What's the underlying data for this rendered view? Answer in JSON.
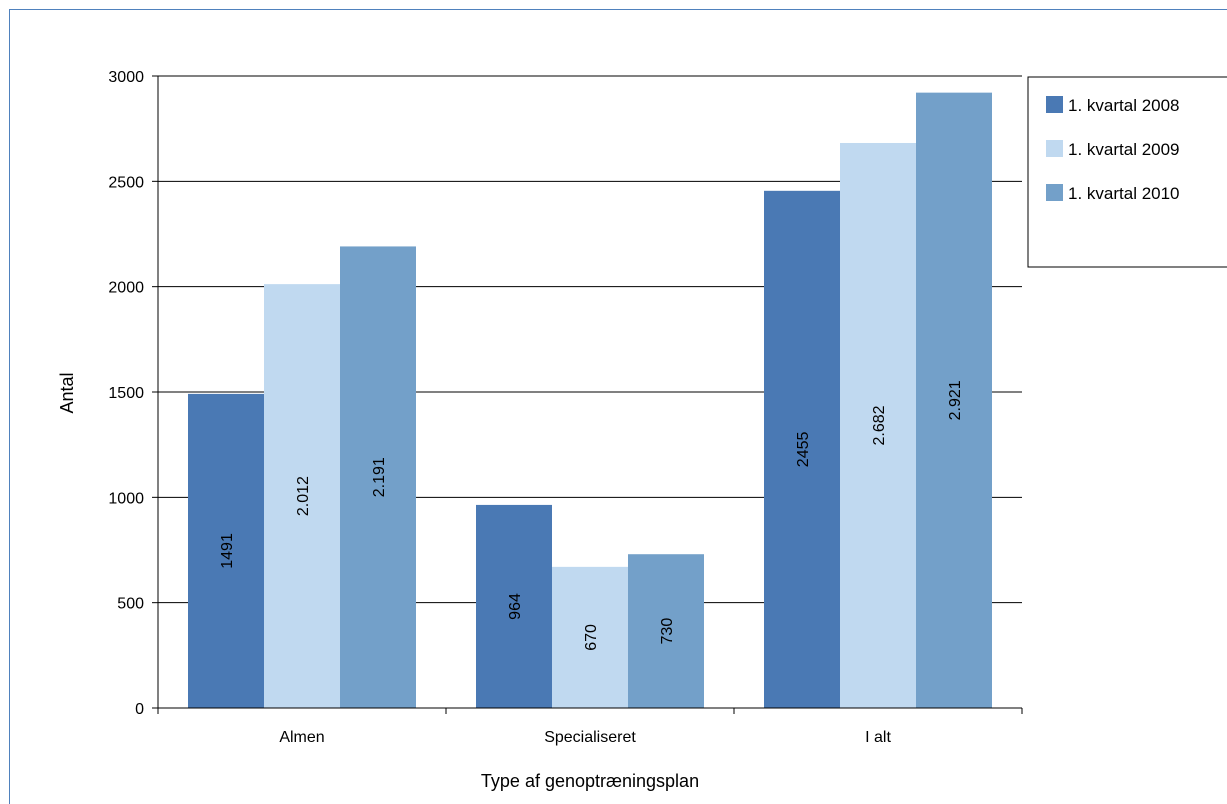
{
  "chart_data": {
    "type": "bar",
    "xlabel": "Type af genoptræningsplan",
    "ylabel": "Antal",
    "ylim": [
      0,
      3000
    ],
    "yticks": [
      0,
      500,
      1000,
      1500,
      2000,
      2500,
      3000
    ],
    "categories": [
      "Almen",
      "Specialiseret",
      "I alt"
    ],
    "series": [
      {
        "name": "1. kvartal 2008",
        "color": "#4a79b4",
        "values": [
          1491,
          964,
          2455
        ],
        "labels": [
          "1491",
          "964",
          "2455"
        ]
      },
      {
        "name": "1. kvartal 2009",
        "color": "#c0d9f0",
        "values": [
          2012,
          670,
          2682
        ],
        "labels": [
          "2.012",
          "670",
          "2.682"
        ]
      },
      {
        "name": "1. kvartal 2010",
        "color": "#73a0c9",
        "values": [
          2191,
          730,
          2921
        ],
        "labels": [
          "2.191",
          "730",
          "2.921"
        ]
      }
    ],
    "grid": true,
    "legend": "right"
  }
}
